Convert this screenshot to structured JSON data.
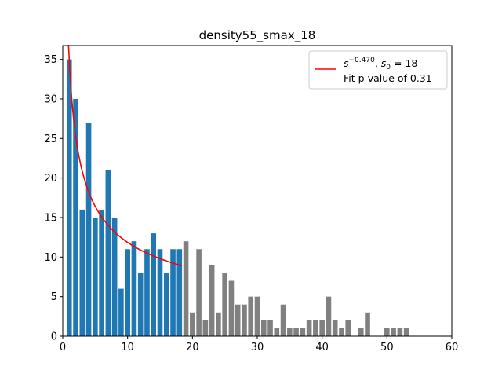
{
  "chart_data": {
    "type": "bar",
    "title": "density55_smax_18",
    "xlabel": "",
    "ylabel": "",
    "xlim": [
      0,
      60
    ],
    "ylim": [
      0,
      36.75
    ],
    "xticks": [
      0,
      10,
      20,
      30,
      40,
      50,
      60
    ],
    "yticks": [
      0,
      5,
      10,
      15,
      20,
      25,
      30,
      35
    ],
    "grid": false,
    "legend_position": "top-right",
    "series": [
      {
        "name": "",
        "color": "#1f77b4",
        "x": [
          1,
          2,
          3,
          4,
          5,
          6,
          7,
          8,
          9,
          10,
          11,
          12,
          13,
          14,
          15,
          16,
          17,
          18
        ],
        "values": [
          35,
          30,
          16,
          27,
          15,
          16,
          21,
          15,
          6,
          11,
          12,
          8,
          11,
          13,
          11,
          8,
          11,
          11
        ]
      },
      {
        "name": "",
        "color": "#808080",
        "x": [
          19,
          20,
          21,
          22,
          23,
          24,
          25,
          26,
          27,
          28,
          29,
          30,
          31,
          32,
          33,
          34,
          35,
          36,
          37,
          38,
          39,
          40,
          41,
          42,
          43,
          44,
          45,
          46,
          47,
          48,
          49,
          50,
          51,
          52,
          53
        ],
        "values": [
          12,
          3,
          11,
          2,
          9,
          3,
          8,
          7,
          4,
          4,
          5,
          5,
          2,
          2,
          1,
          4,
          1,
          1,
          1,
          2,
          2,
          2,
          5,
          2,
          1,
          2,
          0,
          1,
          3,
          0,
          0,
          1,
          1,
          1,
          1
        ]
      },
      {
        "name": "s^{-0.470}, s_0 = 18",
        "type": "line",
        "color": "#ff0000",
        "exponent": -0.47,
        "x_range": [
          0.6,
          18.4
        ]
      }
    ],
    "legend": {
      "line_label_parts": {
        "s": "s",
        "exponent": "−0.470",
        "sep": ", ",
        "s0": "s",
        "s0_sub": "0",
        "eq": " = 18"
      },
      "note": "Fit p-value of 0.31"
    }
  }
}
